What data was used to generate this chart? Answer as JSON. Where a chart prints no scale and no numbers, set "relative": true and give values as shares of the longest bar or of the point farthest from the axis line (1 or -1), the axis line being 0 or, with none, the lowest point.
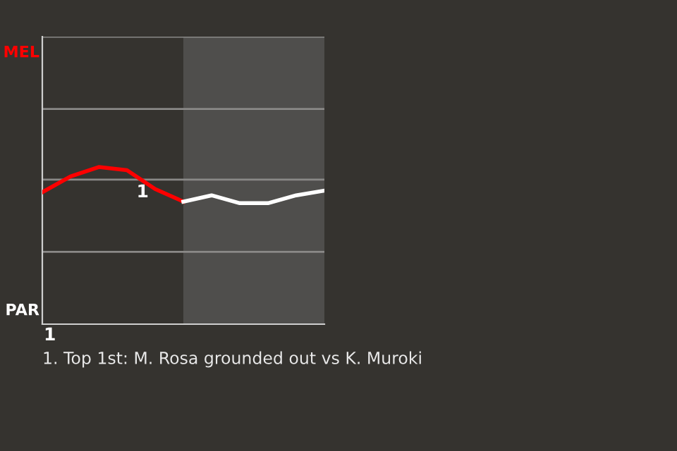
{
  "chart_data": {
    "type": "line",
    "relative": true,
    "categories": [
      null,
      null,
      null,
      null,
      null,
      null,
      null,
      null,
      null,
      null,
      null
    ],
    "series": [
      {
        "color": "#ff0000",
        "values": [
          0.84,
          0.94,
          1,
          0.98,
          0.86,
          0.78,
          null,
          null,
          null,
          null,
          null
        ]
      },
      {
        "color": "#ffffff",
        "values": [
          null,
          null,
          null,
          null,
          null,
          0.78,
          0.82,
          0.77,
          0.77,
          0.82,
          0.85
        ]
      }
    ],
    "ref_lines": [
      {
        "axis": "y",
        "value": 0.46,
        "color": "#8a8987"
      },
      {
        "axis": "y",
        "value": 0.92,
        "color": "#8a8987"
      },
      {
        "axis": "y",
        "value": 1.37,
        "color": "#8a8987"
      },
      {
        "axis": "y",
        "value": 1.83,
        "color": "#8a8987"
      }
    ],
    "annotations": [
      {
        "text": "1",
        "y": 0.93
      },
      "MEL",
      "PAR",
      "1",
      "1. Top 1st: M. Rosa grounded out vs K. Muroki"
    ]
  }
}
